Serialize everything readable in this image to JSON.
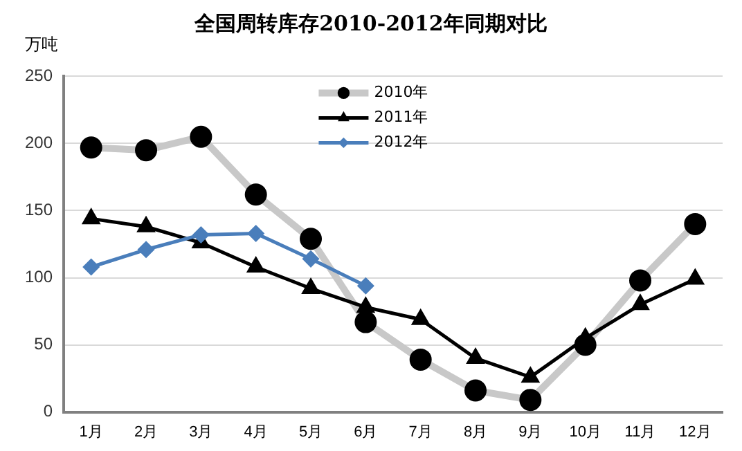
{
  "chart_data": {
    "type": "line",
    "title": "全国周转库存2010-2012年同期对比",
    "ylabel": "万吨",
    "categories": [
      "1月",
      "2月",
      "3月",
      "4月",
      "5月",
      "6月",
      "7月",
      "8月",
      "9月",
      "10月",
      "11月",
      "12月"
    ],
    "series": [
      {
        "name": "2010年",
        "color": "#c8c8c8",
        "marker": "circle",
        "values": [
          197,
          195,
          205,
          162,
          129,
          67,
          39,
          16,
          9,
          50,
          98,
          140
        ]
      },
      {
        "name": "2011年",
        "color": "#000000",
        "marker": "triangle",
        "values": [
          144,
          138,
          126,
          108,
          92,
          78,
          69,
          40,
          26,
          55,
          80,
          99
        ]
      },
      {
        "name": "2012年",
        "color": "#4a7ebb",
        "marker": "diamond",
        "values": [
          108,
          121,
          132,
          133,
          114,
          94,
          null,
          null,
          null,
          null,
          null,
          null
        ]
      }
    ],
    "ylim": [
      0,
      250
    ],
    "yticks": [
      0,
      50,
      100,
      150,
      200,
      250
    ],
    "grid": "y",
    "legend": "top"
  }
}
